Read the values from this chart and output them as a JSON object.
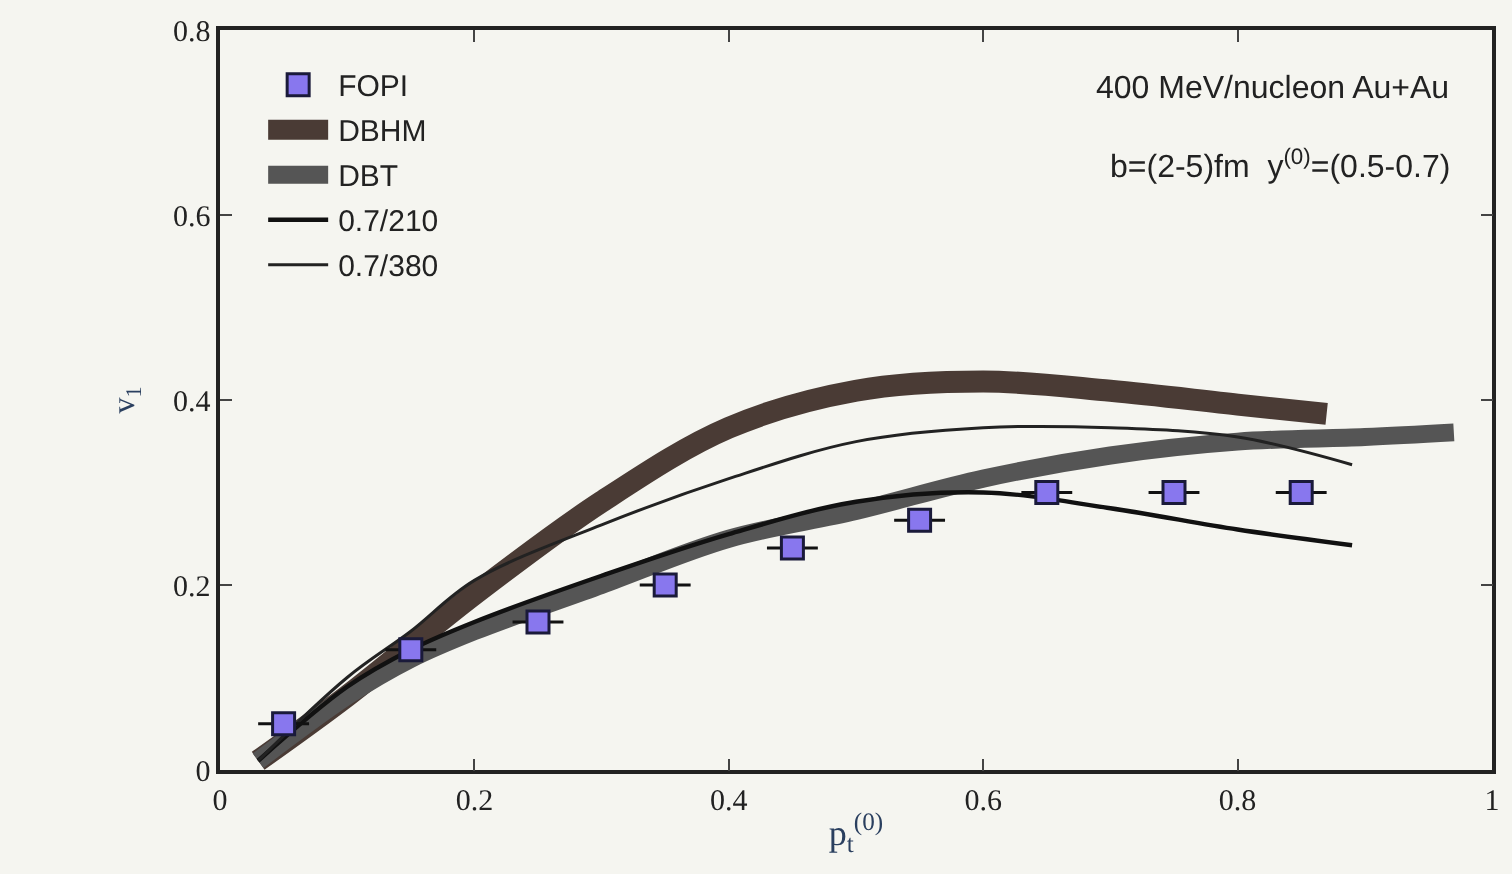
{
  "chart_data": {
    "type": "line",
    "xlabel": "p$_{t}$$^{(0)}$",
    "ylabel": "v$_{1}$",
    "xlim": [
      0,
      1
    ],
    "xticks": [
      0,
      0.2,
      0.4,
      0.6,
      0.8,
      1
    ],
    "ylim": [
      0,
      0.8
    ],
    "yticks": [
      0,
      0.2,
      0.4,
      0.6,
      0.8
    ],
    "grid": false,
    "legend": "top left",
    "annotations": [
      "400 MeV/nucleon Au+Au",
      "b=(2-5)fm  y$^{(0)}$=(0.5-0.7)"
    ],
    "series": [
      {
        "name": "FOPI",
        "type": "scatter",
        "marker": "square",
        "color": "#8877ee",
        "x": [
          0.05,
          0.15,
          0.25,
          0.35,
          0.45,
          0.55,
          0.65,
          0.75,
          0.85
        ],
        "values": [
          0.05,
          0.13,
          0.16,
          0.2,
          0.24,
          0.27,
          0.3,
          0.3,
          0.3
        ],
        "xerrors": [
          0.02,
          0.02,
          0.02,
          0.02,
          0.02,
          0.02,
          0.02,
          0.02,
          0.02
        ]
      },
      {
        "name": "DBHM",
        "color": "#4a3b35",
        "x": [
          0.03,
          0.1,
          0.2,
          0.3,
          0.4,
          0.5,
          0.6,
          0.7,
          0.8,
          0.87
        ],
        "values": [
          0.01,
          0.08,
          0.19,
          0.29,
          0.37,
          0.41,
          0.42,
          0.41,
          0.395,
          0.385
        ]
      },
      {
        "name": "DBT",
        "color": "#555555",
        "x": [
          0.03,
          0.1,
          0.15,
          0.2,
          0.3,
          0.4,
          0.5,
          0.6,
          0.7,
          0.8,
          0.9,
          0.97
        ],
        "values": [
          0.01,
          0.08,
          0.12,
          0.15,
          0.2,
          0.25,
          0.28,
          0.315,
          0.34,
          0.355,
          0.36,
          0.365
        ]
      },
      {
        "name": "0.7/210",
        "color": "#111111",
        "x": [
          0.03,
          0.1,
          0.15,
          0.2,
          0.3,
          0.4,
          0.5,
          0.6,
          0.7,
          0.8,
          0.89
        ],
        "values": [
          0.01,
          0.09,
          0.13,
          0.16,
          0.21,
          0.255,
          0.29,
          0.3,
          0.283,
          0.26,
          0.243
        ]
      },
      {
        "name": "0.7/380",
        "color": "#222222",
        "x": [
          0.03,
          0.1,
          0.15,
          0.2,
          0.3,
          0.4,
          0.5,
          0.6,
          0.7,
          0.8,
          0.89
        ],
        "values": [
          0.01,
          0.1,
          0.15,
          0.205,
          0.265,
          0.315,
          0.355,
          0.37,
          0.37,
          0.36,
          0.33
        ]
      }
    ]
  }
}
